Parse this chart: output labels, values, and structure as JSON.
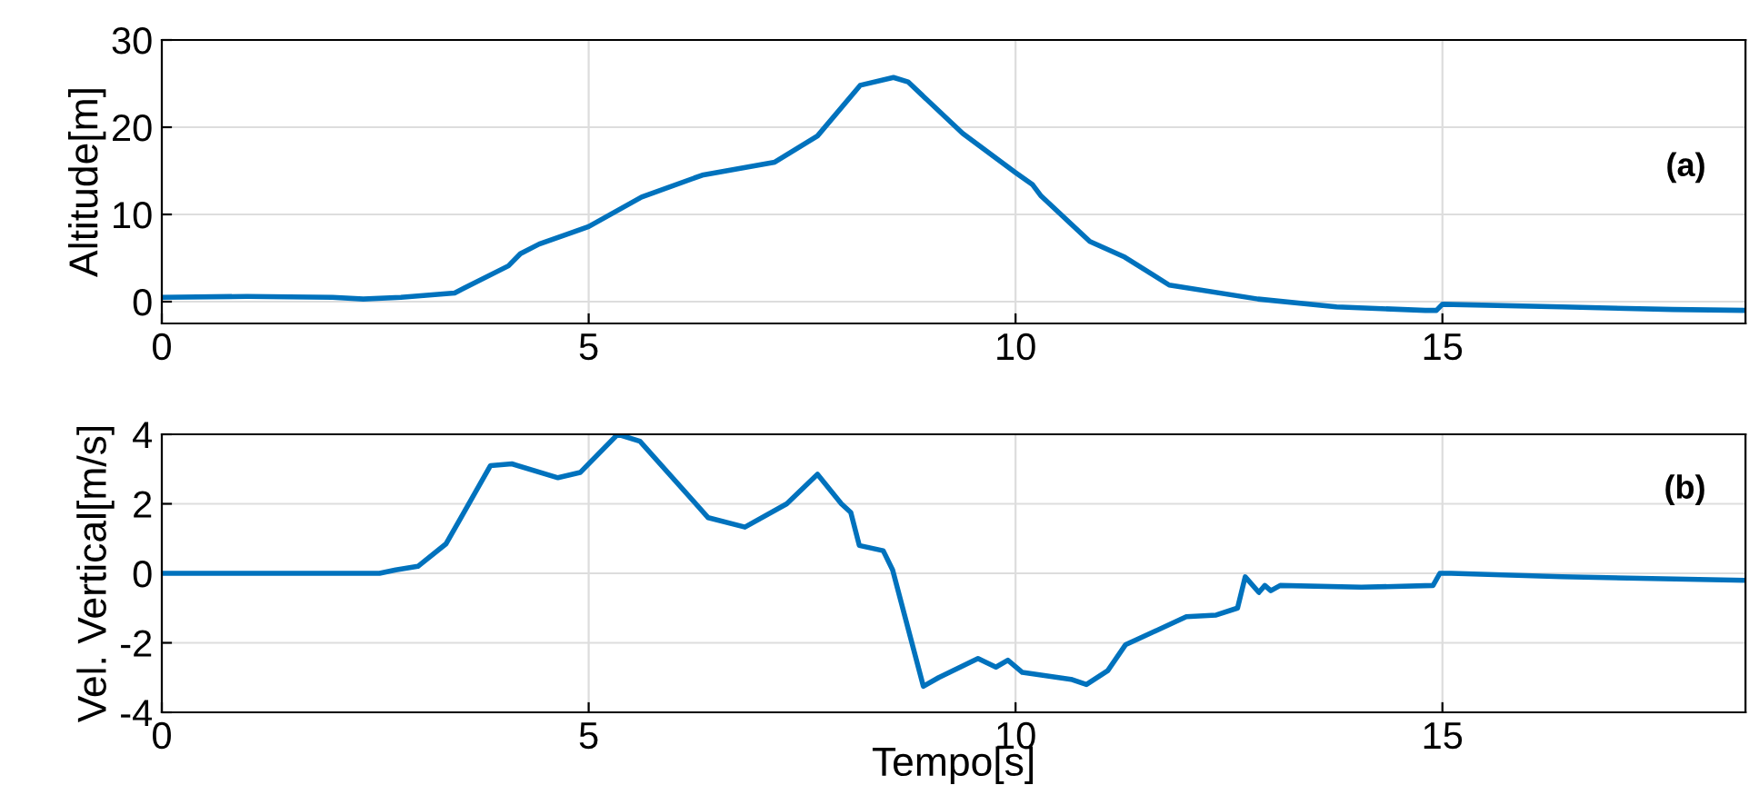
{
  "chart_data": [
    {
      "type": "line",
      "ylabel": "Altitude[m]",
      "annotations": [
        "(a)"
      ],
      "xlim": [
        0,
        18.55
      ],
      "xticks": [
        0,
        5,
        10,
        15
      ],
      "ylim": [
        -2.5,
        30
      ],
      "yticks": [
        0,
        10,
        20,
        30
      ],
      "grid": true,
      "legend": false,
      "series": [
        {
          "color": "#0072bd",
          "x": [
            0,
            1,
            2,
            2.36,
            2.8,
            3.43,
            4.06,
            4.2,
            4.42,
            5,
            5.62,
            6.33,
            7.18,
            7.68,
            8.18,
            8.57,
            8.74,
            9.38,
            10,
            10.2,
            10.3,
            10.87,
            11.28,
            11.8,
            12.84,
            13.76,
            14.8,
            14.93,
            15,
            16.4,
            17.7,
            18.55
          ],
          "values": [
            0.5,
            0.6,
            0.5,
            0.3,
            0.5,
            1.0,
            4.1,
            5.5,
            6.6,
            8.6,
            12,
            14.5,
            16,
            19,
            24.8,
            25.7,
            25.2,
            19.3,
            14.8,
            13.4,
            12.1,
            6.9,
            5.1,
            1.9,
            0.3,
            -0.6,
            -1.0,
            -1.0,
            -0.3,
            -0.6,
            -0.9,
            -1.0
          ]
        }
      ]
    },
    {
      "type": "line",
      "xlabel": "Tempo[s]",
      "ylabel": "Vel. Vertical[m/s]",
      "annotations": [
        "(b)"
      ],
      "xlim": [
        0,
        18.55
      ],
      "xticks": [
        0,
        5,
        10,
        15
      ],
      "ylim": [
        -4,
        4
      ],
      "yticks": [
        -4,
        -2,
        0,
        2,
        4
      ],
      "grid": true,
      "legend": false,
      "series": [
        {
          "color": "#0072bd",
          "x": [
            0,
            2.0,
            2.55,
            2.74,
            3.0,
            3.33,
            3.85,
            4.1,
            4.64,
            4.9,
            5.34,
            5.6,
            6.4,
            6.83,
            7.32,
            7.68,
            7.96,
            8.07,
            8.17,
            8.45,
            8.56,
            8.92,
            9.1,
            9.56,
            9.77,
            9.91,
            10.08,
            10.65,
            10.83,
            11.08,
            11.29,
            11.47,
            12,
            12.35,
            12.6,
            12.69,
            12.85,
            12.92,
            12.99,
            13.1,
            14.05,
            14.89,
            14.97,
            15.1,
            16.4,
            18.55
          ],
          "values": [
            0,
            0,
            0,
            0.1,
            0.2,
            0.85,
            3.1,
            3.15,
            2.75,
            2.9,
            4.0,
            3.8,
            1.6,
            1.33,
            2.0,
            2.85,
            2.0,
            1.75,
            0.8,
            0.65,
            0.1,
            -3.25,
            -3.0,
            -2.45,
            -2.7,
            -2.5,
            -2.85,
            -3.05,
            -3.2,
            -2.8,
            -2.05,
            -1.85,
            -1.25,
            -1.2,
            -1.0,
            -0.1,
            -0.55,
            -0.35,
            -0.5,
            -0.35,
            -0.4,
            -0.35,
            0,
            0,
            -0.1,
            -0.2
          ]
        }
      ]
    }
  ]
}
